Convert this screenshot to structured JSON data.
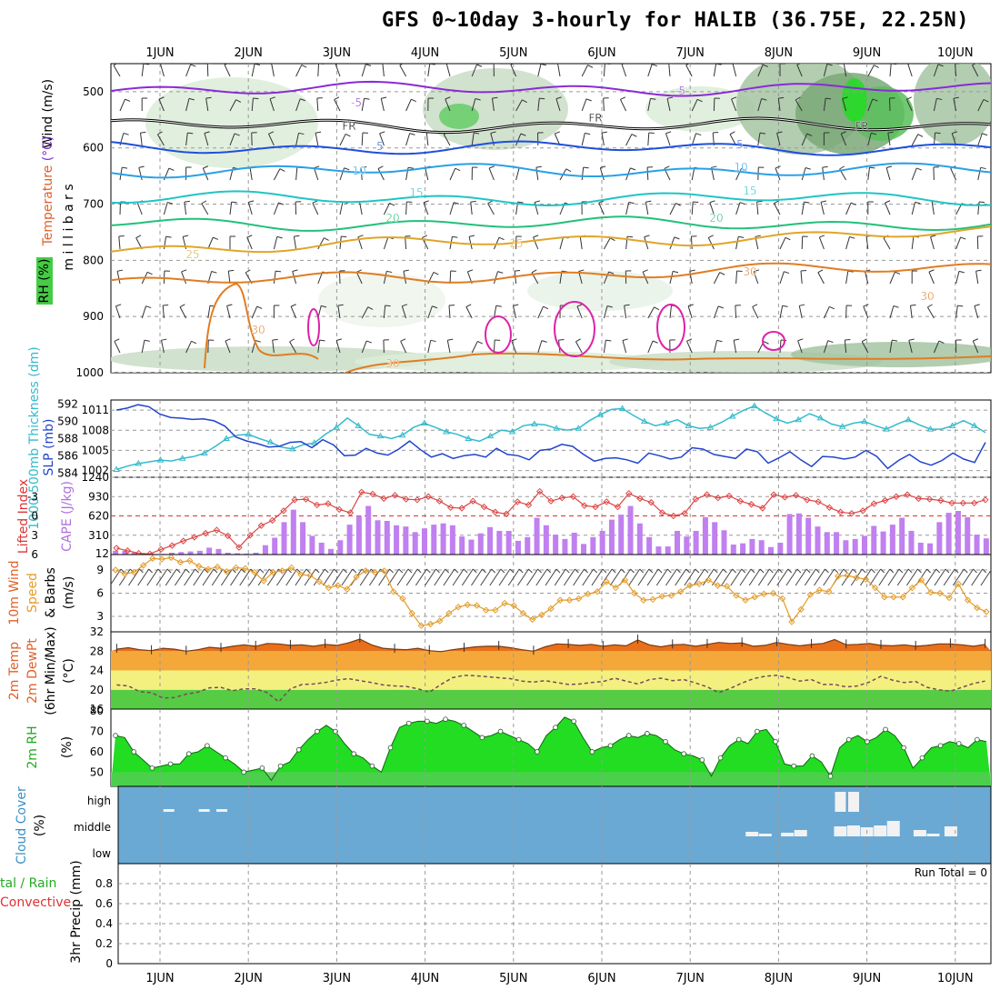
{
  "header": {
    "title": "GFS 0~10day 3-hourly for HALIB (36.75E, 22.25N)"
  },
  "colors": {
    "background": "#ffffff",
    "rh_green": "#44cc44",
    "cape_bar": "#c080f0",
    "cloud_bg": "#6aa9d4",
    "cloud_block": "#f2f2f2",
    "temp_fill": "#e8701a",
    "dewpt_band_yellow": "#f4f080",
    "rh2m_fill": "#22dd22",
    "thickness_line": "#33bbcc",
    "slp_line": "#2244cc",
    "lifted_line": "#dd4444",
    "wind_speed_line": "#e39c2a"
  },
  "chart_data": [
    {
      "panel": "upper-air",
      "type": "contour",
      "ylabel": "m i l l i b a r s",
      "y_ticks": [
        500,
        600,
        700,
        800,
        900,
        1000
      ],
      "ylim": [
        450,
        1000
      ],
      "legend_labels": [
        "Wind (m/s)",
        "Temperature (°C)",
        "RH (%)"
      ],
      "legend_wind": "Wind",
      "legend_wind_units": "(m/s)",
      "legend_temp": "Temperature",
      "legend_temp_units": "(°C)",
      "legend_rh": "RH (%)",
      "isotherms": [
        {
          "value": -5,
          "label": "-5",
          "level": 495,
          "color": "#8a2bd6"
        },
        {
          "value": 0,
          "label": "FR",
          "level": 560,
          "color": "#000000"
        },
        {
          "value": 5,
          "label": "5",
          "level": 600,
          "color": "#1f4fdb"
        },
        {
          "value": 10,
          "label": "10",
          "level": 640,
          "color": "#2aa0e6"
        },
        {
          "value": 15,
          "label": "15",
          "level": 690,
          "color": "#22c4c4"
        },
        {
          "value": 20,
          "label": "20",
          "level": 735,
          "color": "#22c07a"
        },
        {
          "value": 25,
          "label": "25",
          "level": 780,
          "color": "#e0a52a"
        },
        {
          "value": 30,
          "label": "30",
          "level": 840,
          "color": "#e07d22"
        }
      ],
      "contour_labels": [
        "-5",
        "-5",
        "FR",
        "FR",
        "FR",
        "5",
        "5",
        "10",
        "10",
        "15",
        "15",
        "20",
        "20",
        "25",
        "25",
        "30",
        "30",
        "30",
        "30"
      ]
    },
    {
      "panel": "thickness-slp",
      "type": "line",
      "ylabel_left": "1000-500mb Thickness (dm)",
      "ylabel_right": "SLP (mb)",
      "left_ticks": [
        584,
        586,
        588,
        590,
        592
      ],
      "right_ticks": [
        1002,
        1005,
        1008,
        1011
      ],
      "series": [
        {
          "name": "thickness",
          "axis": "left",
          "ylim": [
            583.5,
            592.5
          ],
          "values": [
            584.4,
            584.8,
            585.1,
            585.3,
            585.5,
            585.4,
            585.7,
            585.9,
            586.3,
            587.1,
            588.0,
            588.4,
            588.5,
            588.0,
            587.6,
            587.0,
            586.8,
            587.3,
            587.5,
            588.5,
            589.3,
            590.4,
            589.5,
            588.5,
            588.3,
            588.0,
            588.4,
            589.3,
            589.8,
            589.3,
            588.8,
            588.5,
            588.0,
            587.7,
            588.3,
            589.0,
            588.8,
            589.5,
            589.7,
            589.6,
            589.2,
            589.0,
            589.2,
            590.1,
            590.8,
            591.4,
            591.5,
            590.7,
            590.0,
            589.5,
            589.8,
            590.2,
            589.5,
            589.2,
            589.3,
            589.9,
            590.6,
            591.3,
            591.8,
            591.0,
            590.3,
            589.8,
            590.2,
            590.9,
            590.4,
            589.7,
            589.4,
            589.8,
            590.0,
            589.5,
            589.1,
            589.7,
            590.2,
            589.6,
            589.1,
            589.1,
            589.5,
            590.1,
            589.5,
            588.7
          ]
        },
        {
          "name": "slp",
          "axis": "right",
          "ylim": [
            1001,
            1012.5
          ],
          "values": [
            1011.0,
            1011.3,
            1011.8,
            1011.5,
            1010.4,
            1009.9,
            1009.8,
            1009.6,
            1009.7,
            1009.4,
            1008.6,
            1007.0,
            1006.4,
            1006.0,
            1005.5,
            1005.6,
            1006.2,
            1006.3,
            1005.4,
            1006.6,
            1005.8,
            1004.2,
            1004.3,
            1005.3,
            1004.6,
            1004.3,
            1005.2,
            1006.4,
            1005.1,
            1004.0,
            1004.5,
            1003.8,
            1004.2,
            1004.4,
            1004.0,
            1005.3,
            1004.4,
            1004.2,
            1003.6,
            1005.0,
            1005.2,
            1005.9,
            1005.6,
            1004.4,
            1003.4,
            1003.8,
            1003.9,
            1003.6,
            1003.1,
            1004.6,
            1004.2,
            1003.7,
            1004.0,
            1005.4,
            1005.2,
            1004.4,
            1004.1,
            1003.8,
            1005.2,
            1004.8,
            1003.1,
            1003.9,
            1004.8,
            1003.6,
            1002.6,
            1004.1,
            1004.0,
            1003.7,
            1004.0,
            1005.0,
            1004.1,
            1002.3,
            1003.5,
            1004.4,
            1003.3,
            1002.8,
            1003.5,
            1004.6,
            1003.7,
            1003.2,
            1006.2
          ]
        }
      ]
    },
    {
      "panel": "cape-lifted",
      "type": "bar+line",
      "ylabel_left": "Lifted Index",
      "ylabel_right": "CAPE (J/kg)",
      "left_ticks": [
        "-3",
        "0",
        "3",
        "6"
      ],
      "right_ticks": [
        "12",
        "310",
        "620",
        "930",
        "1240"
      ],
      "cape_values": [
        60,
        60,
        30,
        10,
        10,
        10,
        30,
        40,
        50,
        60,
        110,
        90,
        30,
        20,
        15,
        30,
        150,
        270,
        520,
        720,
        520,
        300,
        190,
        90,
        230,
        480,
        620,
        780,
        550,
        540,
        470,
        450,
        360,
        420,
        480,
        500,
        470,
        290,
        240,
        340,
        440,
        380,
        380,
        220,
        280,
        590,
        470,
        320,
        250,
        350,
        170,
        280,
        380,
        560,
        640,
        780,
        500,
        280,
        130,
        130,
        380,
        290,
        380,
        600,
        520,
        390,
        160,
        180,
        250,
        230,
        120,
        190,
        650,
        660,
        590,
        450,
        360,
        360,
        230,
        250,
        300,
        460,
        370,
        480,
        590,
        380,
        190,
        180,
        520,
        670,
        700,
        600,
        320,
        260
      ],
      "lifted_values": [
        5.0,
        5.4,
        5.8,
        5.9,
        5.2,
        4.6,
        3.9,
        3.3,
        2.7,
        2.2,
        3.1,
        4.9,
        3.0,
        1.5,
        0.7,
        -0.8,
        -2.5,
        -2.6,
        -1.7,
        -1.9,
        -1.0,
        -0.5,
        -3.7,
        -3.4,
        -2.7,
        -3.2,
        -2.6,
        -2.5,
        -3.0,
        -2.3,
        -1.3,
        -1.2,
        -2.3,
        -1.4,
        -0.6,
        -0.3,
        -2.2,
        -1.7,
        -3.8,
        -2.3,
        -2.8,
        -3.0,
        -1.6,
        -1.4,
        -2.2,
        -1.4,
        -3.5,
        -2.7,
        -2.1,
        -0.5,
        0.0,
        -0.4,
        -2.6,
        -3.3,
        -2.8,
        -3.1,
        -2.3,
        -1.8,
        -1.2,
        -3.3,
        -2.9,
        -3.2,
        -2.5,
        -2.2,
        -1.3,
        -0.6,
        -0.4,
        -0.8,
        -1.9,
        -2.4,
        -3.0,
        -3.3,
        -2.7,
        -2.6,
        -2.4,
        -2.0,
        -2.0,
        -2.0,
        -2.5
      ],
      "zero_line_color": "#dd3333"
    },
    {
      "panel": "wind10m",
      "type": "line",
      "ylabel": "10m Wind Speed & Barbs (m/s)",
      "ylabel_a": "10m Wind",
      "ylabel_b": "Speed",
      "ylabel_c": "& Barbs",
      "units": "(m/s)",
      "y_ticks": [
        "3",
        "6",
        "9"
      ],
      "ylim": [
        1,
        11
      ],
      "values": [
        9.0,
        8.5,
        8.7,
        9.6,
        10.5,
        10.4,
        10.6,
        10.0,
        10.2,
        9.5,
        9.1,
        9.4,
        8.8,
        9.3,
        9.2,
        8.7,
        7.6,
        8.7,
        8.9,
        9.3,
        8.4,
        8.3,
        7.5,
        6.7,
        7.0,
        6.5,
        8.1,
        8.9,
        8.7,
        8.9,
        6.2,
        5.3,
        3.4,
        1.8,
        2.0,
        2.4,
        3.4,
        4.2,
        4.5,
        4.4,
        3.8,
        3.8,
        4.7,
        4.4,
        3.4,
        2.6,
        3.2,
        4.0,
        5.1,
        5.1,
        5.3,
        5.9,
        6.2,
        7.5,
        6.7,
        7.7,
        6.0,
        5.1,
        5.2,
        5.6,
        5.7,
        6.2,
        7.0,
        7.2,
        7.7,
        7.0,
        6.9,
        5.7,
        5.1,
        5.5,
        5.9,
        6.0,
        5.3,
        2.3,
        3.9,
        5.8,
        6.4,
        6.2,
        8.2,
        8.3,
        8.0,
        7.8,
        6.7,
        5.5,
        5.5,
        5.5,
        6.7,
        7.7,
        6.1,
        6.0,
        5.4,
        7.2,
        5.1,
        4.1,
        3.6
      ]
    },
    {
      "panel": "temp2m",
      "type": "area+line",
      "ylabel": "2m Temp 2m DewPt (6hr Min/Max) (°C)",
      "ylabel_a": "2m Temp",
      "ylabel_b": "2m DewPt",
      "ylabel_c": "(6hr Min/Max)",
      "units": "(°C)",
      "y_ticks": [
        "16",
        "20",
        "24",
        "28",
        "32"
      ],
      "ylim": [
        16,
        32
      ],
      "temp_values": [
        28.4,
        28.7,
        28.3,
        28.1,
        28.6,
        28.4,
        28.0,
        28.3,
        28.8,
        28.6,
        29.0,
        29.3,
        29.0,
        29.6,
        29.5,
        29.2,
        29.3,
        29.0,
        29.4,
        29.2,
        29.7,
        30.5,
        29.3,
        28.6,
        28.4,
        28.3,
        28.6,
        28.1,
        27.9,
        28.3,
        28.6,
        28.9,
        29.0,
        29.0,
        28.7,
        28.3,
        28.0,
        28.9,
        29.5,
        29.4,
        29.2,
        29.4,
        29.0,
        29.3,
        29.1,
        30.3,
        29.3,
        28.9,
        29.3,
        29.4,
        29.0,
        29.4,
        29.8,
        29.6,
        29.7,
        29.0,
        29.2,
        29.8,
        29.4,
        29.1,
        29.4,
        29.6,
        30.4,
        29.3,
        29.4,
        29.6,
        29.2,
        29.1,
        29.3,
        29.0,
        29.2,
        29.5,
        29.5,
        29.3,
        29.0,
        29.4
      ],
      "dewpt_values": [
        21.0,
        20.8,
        19.6,
        19.4,
        18.3,
        18.4,
        19.1,
        19.5,
        20.4,
        20.5,
        19.8,
        20.2,
        20.2,
        19.4,
        17.5,
        20.2,
        21.1,
        21.2,
        21.5,
        22.0,
        22.3,
        21.9,
        21.5,
        21.0,
        20.8,
        20.7,
        20.2,
        19.5,
        21.1,
        22.5,
        23.0,
        22.9,
        22.7,
        22.5,
        22.3,
        21.8,
        21.6,
        21.9,
        21.5,
        21.1,
        21.2,
        21.5,
        21.7,
        22.4,
        21.8,
        21.2,
        22.1,
        22.4,
        21.9,
        22.1,
        21.4,
        20.6,
        19.4,
        20.3,
        21.4,
        22.3,
        22.8,
        23.0,
        22.5,
        21.8,
        22.1,
        21.1,
        21.1,
        20.6,
        20.8,
        21.6,
        22.8,
        22.0,
        21.5,
        21.7,
        20.5,
        20.0,
        19.7,
        20.5,
        21.3,
        21.8
      ]
    },
    {
      "panel": "rh2m",
      "type": "area",
      "ylabel": "2m RH",
      "units": "(%)",
      "y_ticks": [
        "50",
        "60",
        "70",
        "80"
      ],
      "ylim": [
        43,
        81
      ],
      "values": [
        68,
        67,
        60,
        56,
        52,
        53,
        54,
        54,
        59,
        60,
        63,
        60,
        57,
        54,
        50,
        51,
        52,
        46,
        53,
        55,
        61,
        66,
        70,
        73,
        70,
        64,
        59,
        57,
        53,
        50,
        62,
        72,
        74,
        75,
        75,
        74,
        76,
        75,
        73,
        70,
        67,
        68,
        70,
        68,
        66,
        64,
        60,
        68,
        72,
        77,
        75,
        67,
        60,
        62,
        63,
        66,
        68,
        67,
        69,
        68,
        65,
        61,
        59,
        58,
        56,
        48,
        57,
        63,
        66,
        64,
        70,
        71,
        65,
        54,
        53,
        53,
        58,
        55,
        48,
        62,
        66,
        68,
        65,
        67,
        71,
        68,
        62,
        52,
        57,
        62,
        63,
        65,
        64,
        62,
        66,
        65
      ]
    },
    {
      "panel": "cloud",
      "type": "blocks",
      "ylabel": "Cloud Cover",
      "units": "(%)",
      "levels": [
        "high",
        "middle",
        "low"
      ],
      "high_blocks": [
        {
          "day": 1.1,
          "amt": 0.3
        },
        {
          "day": 1.5,
          "amt": 0.3
        },
        {
          "day": 1.7,
          "amt": 0.3
        },
        {
          "day": 8.7,
          "amt": 2.2
        },
        {
          "day": 8.85,
          "amt": 2.2
        }
      ],
      "mid_blocks": [
        {
          "day": 7.7,
          "amt": 0.5
        },
        {
          "day": 7.85,
          "amt": 0.3
        },
        {
          "day": 8.1,
          "amt": 0.4
        },
        {
          "day": 8.25,
          "amt": 0.7
        },
        {
          "day": 8.7,
          "amt": 1.1
        },
        {
          "day": 8.85,
          "amt": 1.2
        },
        {
          "day": 9.0,
          "amt": 1.0
        },
        {
          "day": 9.15,
          "amt": 1.2
        },
        {
          "day": 9.3,
          "amt": 1.7
        },
        {
          "day": 9.6,
          "amt": 0.7
        },
        {
          "day": 9.75,
          "amt": 0.3
        },
        {
          "day": 9.95,
          "amt": 1.1
        }
      ]
    },
    {
      "panel": "precip",
      "type": "bar",
      "ylabel": "3hr Precip (mm)",
      "left_label_top": "tal / Rain",
      "left_label_bottom": "Convective",
      "y_ticks": [
        "0",
        "0.2",
        "0.4",
        "0.6",
        "0.8"
      ],
      "ylim": [
        0,
        1
      ],
      "run_total_label": "Run Total = 0",
      "values": []
    }
  ],
  "x_axis": {
    "day_labels": [
      "1JUN",
      "2JUN",
      "3JUN",
      "4JUN",
      "5JUN",
      "6JUN",
      "7JUN",
      "8JUN",
      "9JUN",
      "10JUN"
    ]
  }
}
